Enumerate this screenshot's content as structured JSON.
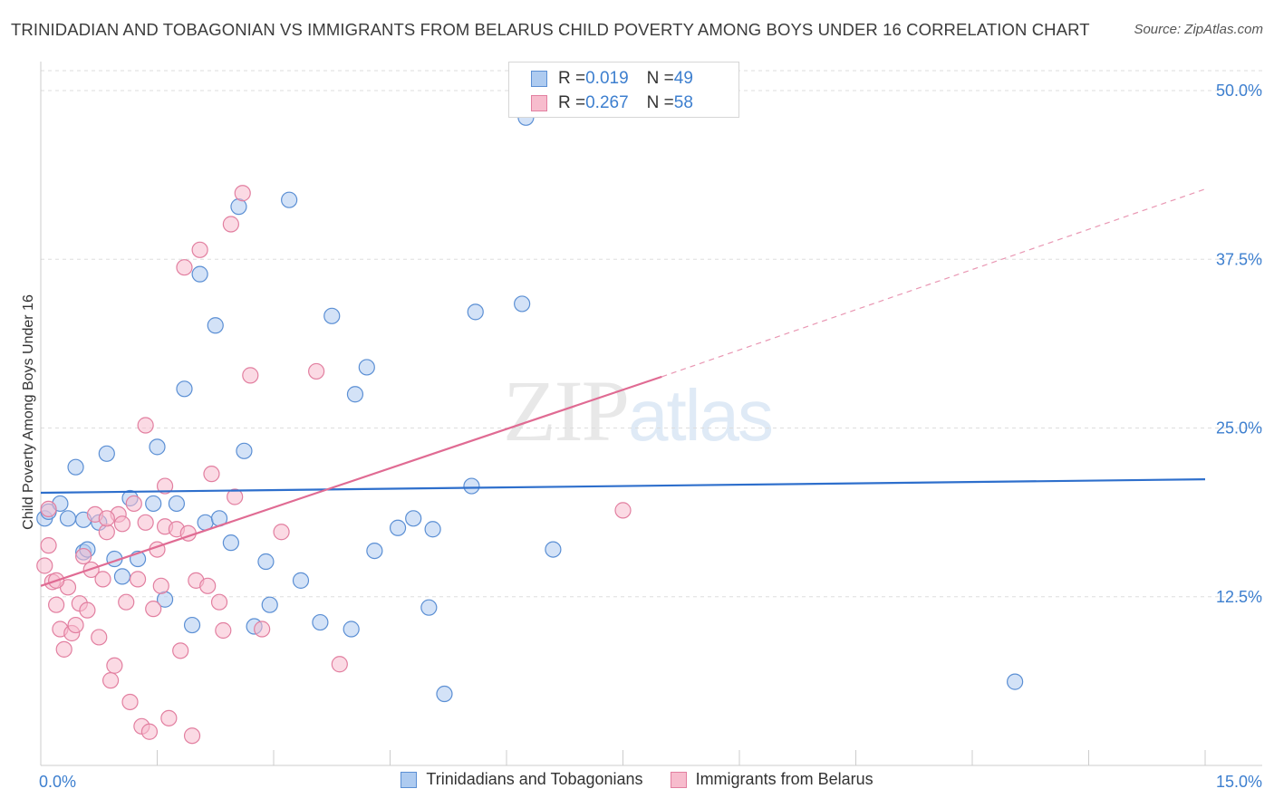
{
  "title": "TRINIDADIAN AND TOBAGONIAN VS IMMIGRANTS FROM BELARUS CHILD POVERTY AMONG BOYS UNDER 16 CORRELATION CHART",
  "source": "Source: ZipAtlas.com",
  "watermark": {
    "zip": "ZIP",
    "atlas": "atlas"
  },
  "colors": {
    "blue_fill": "#aecbf0",
    "blue_stroke": "#5b8fd4",
    "blue_line": "#2e6fcc",
    "pink_fill": "#f7bccd",
    "pink_stroke": "#e27fa0",
    "pink_line": "#e06b93",
    "tick_label": "#3d7fcf",
    "grid": "#dddddd"
  },
  "legend_stats": [
    {
      "r_label": "R = ",
      "r_value": "0.019",
      "n_label": "N = ",
      "n_value": "49"
    },
    {
      "r_label": "R = ",
      "r_value": "0.267",
      "n_label": "N = ",
      "n_value": "58"
    }
  ],
  "legend_bottom": [
    "Trinidadians and Tobagonians",
    "Immigrants from Belarus"
  ],
  "chart_data": {
    "type": "scatter",
    "title": "TRINIDADIAN AND TOBAGONIAN VS IMMIGRANTS FROM BELARUS CHILD POVERTY AMONG BOYS UNDER 16 CORRELATION CHART",
    "xlabel": "",
    "ylabel": "Child Poverty Among Boys Under 16",
    "xlim": [
      0,
      15
    ],
    "ylim": [
      0,
      50
    ],
    "x_tick_labels": [
      "0.0%",
      "15.0%"
    ],
    "y_ticks": [
      12.5,
      25.0,
      37.5,
      50.0
    ],
    "y_tick_labels": [
      "12.5%",
      "25.0%",
      "37.5%",
      "50.0%"
    ],
    "series": [
      {
        "name": "Trinidadians and Tobagonians",
        "color": "#5b8fd4",
        "R": 0.019,
        "N": 49,
        "trend": {
          "x0": 0.0,
          "y0": 20.2,
          "x1": 15.0,
          "y1": 21.2
        },
        "points": [
          [
            0.05,
            18.3
          ],
          [
            0.1,
            18.8
          ],
          [
            0.25,
            19.4
          ],
          [
            0.35,
            18.3
          ],
          [
            0.45,
            22.1
          ],
          [
            0.55,
            15.8
          ],
          [
            0.6,
            16.0
          ],
          [
            0.75,
            18.0
          ],
          [
            0.85,
            23.1
          ],
          [
            0.95,
            15.3
          ],
          [
            1.05,
            14.0
          ],
          [
            1.15,
            19.8
          ],
          [
            1.25,
            15.3
          ],
          [
            1.45,
            19.4
          ],
          [
            1.5,
            23.6
          ],
          [
            1.6,
            12.3
          ],
          [
            1.75,
            19.4
          ],
          [
            1.85,
            27.9
          ],
          [
            1.95,
            10.4
          ],
          [
            2.05,
            36.4
          ],
          [
            2.12,
            18.0
          ],
          [
            2.25,
            32.6
          ],
          [
            2.3,
            18.3
          ],
          [
            2.45,
            16.5
          ],
          [
            2.55,
            41.4
          ],
          [
            2.62,
            23.3
          ],
          [
            2.75,
            10.3
          ],
          [
            2.9,
            15.1
          ],
          [
            2.95,
            11.9
          ],
          [
            3.2,
            41.9
          ],
          [
            3.35,
            13.7
          ],
          [
            3.6,
            10.6
          ],
          [
            3.75,
            33.3
          ],
          [
            4.0,
            10.1
          ],
          [
            4.05,
            27.5
          ],
          [
            4.2,
            29.5
          ],
          [
            4.3,
            15.9
          ],
          [
            4.6,
            17.6
          ],
          [
            4.8,
            18.3
          ],
          [
            5.0,
            11.7
          ],
          [
            5.05,
            17.5
          ],
          [
            5.2,
            5.3
          ],
          [
            5.55,
            20.7
          ],
          [
            5.6,
            33.6
          ],
          [
            6.2,
            34.2
          ],
          [
            6.6,
            16.0
          ],
          [
            12.55,
            6.2
          ],
          [
            6.25,
            48.0
          ],
          [
            0.55,
            18.2
          ]
        ]
      },
      {
        "name": "Immigrants from Belarus",
        "color": "#e27fa0",
        "R": 0.267,
        "N": 58,
        "trend": {
          "x0": 0.0,
          "y0": 13.3,
          "x1": 8.0,
          "y1": 28.8
        },
        "trend_extension": {
          "x0": 8.0,
          "y0": 28.8,
          "x1": 15.0,
          "y1": 42.7
        },
        "points": [
          [
            0.05,
            14.8
          ],
          [
            0.1,
            19.0
          ],
          [
            0.15,
            13.6
          ],
          [
            0.2,
            11.9
          ],
          [
            0.25,
            10.1
          ],
          [
            0.3,
            8.6
          ],
          [
            0.35,
            13.2
          ],
          [
            0.4,
            9.8
          ],
          [
            0.45,
            10.4
          ],
          [
            0.5,
            12.0
          ],
          [
            0.55,
            15.5
          ],
          [
            0.6,
            11.5
          ],
          [
            0.65,
            14.5
          ],
          [
            0.7,
            18.6
          ],
          [
            0.75,
            9.5
          ],
          [
            0.8,
            13.8
          ],
          [
            0.85,
            17.3
          ],
          [
            0.9,
            6.3
          ],
          [
            0.95,
            7.4
          ],
          [
            1.0,
            18.6
          ],
          [
            1.05,
            17.9
          ],
          [
            1.1,
            12.1
          ],
          [
            1.15,
            4.7
          ],
          [
            1.2,
            19.4
          ],
          [
            1.25,
            13.8
          ],
          [
            1.3,
            2.9
          ],
          [
            1.35,
            25.2
          ],
          [
            1.4,
            2.5
          ],
          [
            1.45,
            11.6
          ],
          [
            1.5,
            16.0
          ],
          [
            1.55,
            13.3
          ],
          [
            1.6,
            17.7
          ],
          [
            1.65,
            3.5
          ],
          [
            1.75,
            17.5
          ],
          [
            1.8,
            8.5
          ],
          [
            1.85,
            36.9
          ],
          [
            1.9,
            17.2
          ],
          [
            1.95,
            2.2
          ],
          [
            2.0,
            13.7
          ],
          [
            2.05,
            38.2
          ],
          [
            2.15,
            13.3
          ],
          [
            2.2,
            21.6
          ],
          [
            2.3,
            12.1
          ],
          [
            2.35,
            10.0
          ],
          [
            2.45,
            40.1
          ],
          [
            2.5,
            19.9
          ],
          [
            2.6,
            42.4
          ],
          [
            2.7,
            28.9
          ],
          [
            2.85,
            10.1
          ],
          [
            3.1,
            17.3
          ],
          [
            3.55,
            29.2
          ],
          [
            3.85,
            7.5
          ],
          [
            1.6,
            20.7
          ],
          [
            0.85,
            18.3
          ],
          [
            0.1,
            16.3
          ],
          [
            0.2,
            13.7
          ],
          [
            1.35,
            18.0
          ],
          [
            7.5,
            18.9
          ]
        ]
      }
    ]
  }
}
